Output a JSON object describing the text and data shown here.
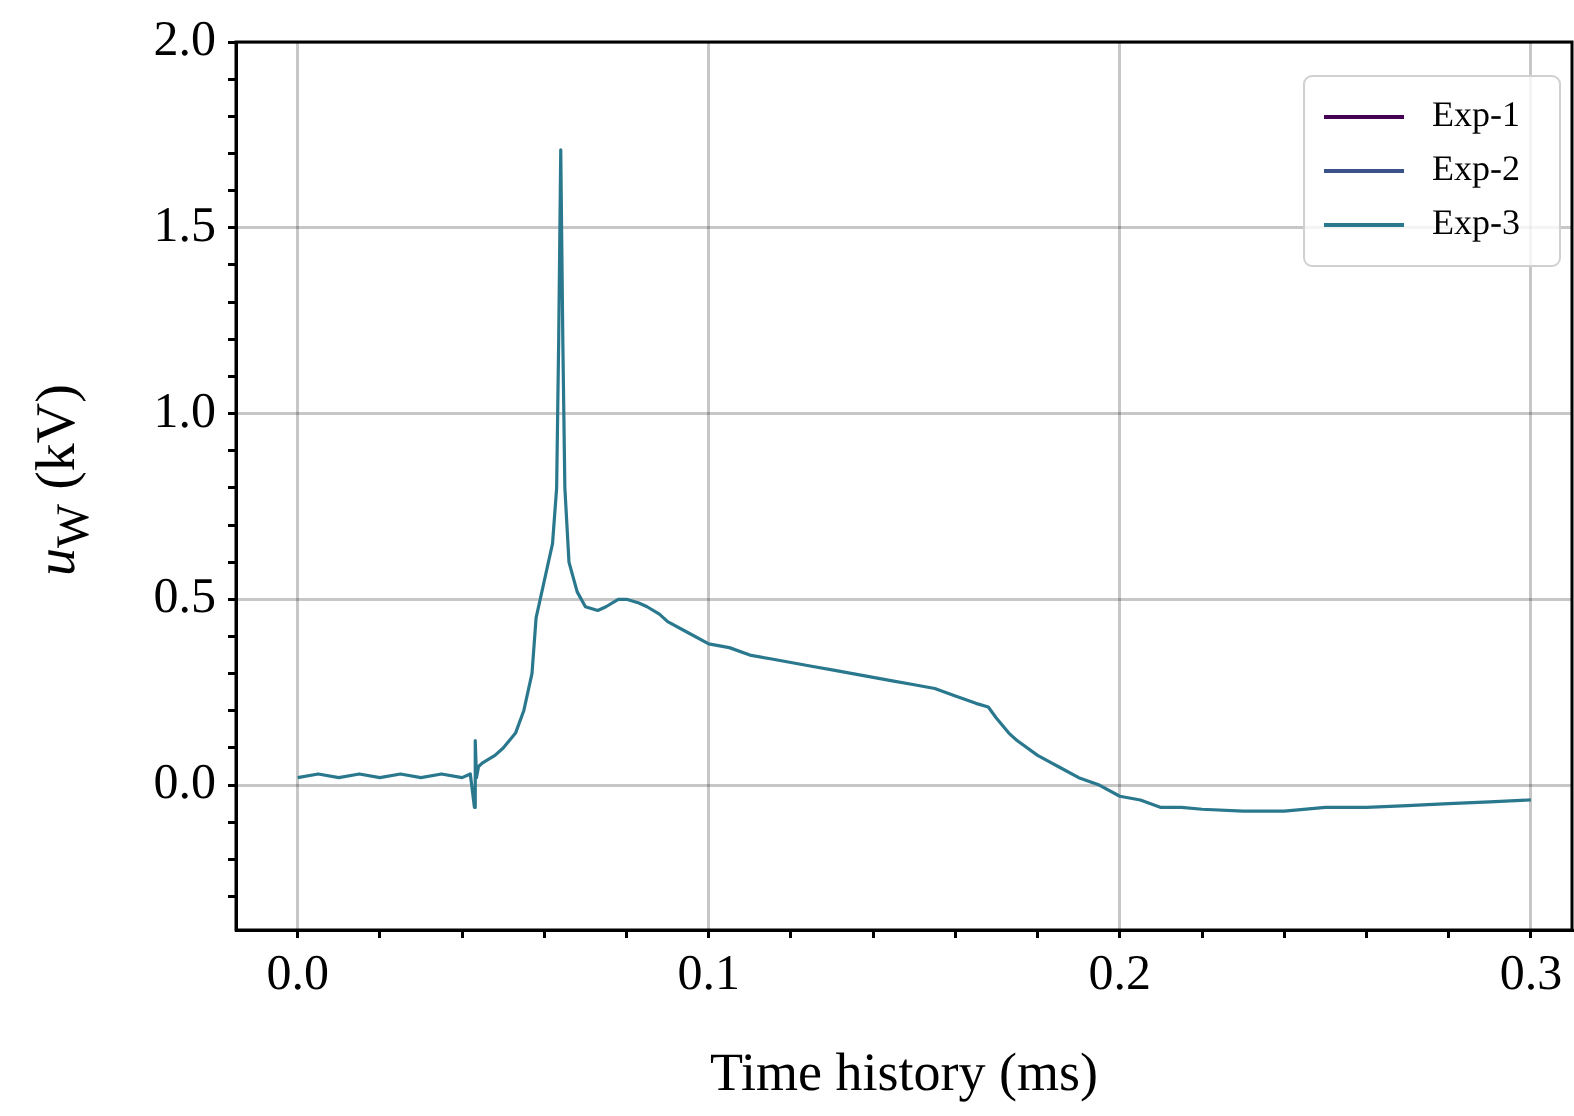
{
  "chart_data": {
    "type": "line",
    "xlabel": "Time history (ms)",
    "ylabel": "u$_{W}$ (kV)",
    "x": [
      0,
      0.005,
      0.01,
      0.015,
      0.02,
      0.025,
      0.03,
      0.035,
      0.04,
      0.042,
      0.043,
      0.0432,
      0.0435,
      0.044,
      0.045,
      0.048,
      0.05,
      0.053,
      0.055,
      0.056,
      0.057,
      0.058,
      0.06,
      0.062,
      0.063,
      0.0635,
      0.064,
      0.0645,
      0.065,
      0.066,
      0.068,
      0.07,
      0.073,
      0.075,
      0.078,
      0.08,
      0.083,
      0.085,
      0.088,
      0.09,
      0.095,
      0.1,
      0.105,
      0.11,
      0.115,
      0.12,
      0.125,
      0.13,
      0.135,
      0.14,
      0.145,
      0.15,
      0.155,
      0.16,
      0.165,
      0.168,
      0.17,
      0.173,
      0.175,
      0.18,
      0.185,
      0.19,
      0.195,
      0.2,
      0.205,
      0.21,
      0.215,
      0.22,
      0.23,
      0.24,
      0.25,
      0.26,
      0.27,
      0.28,
      0.29,
      0.3
    ],
    "series": [
      {
        "name": "Exp-1",
        "color": "#440154",
        "values": [
          null,
          null,
          null,
          null,
          null,
          null,
          null,
          null,
          null,
          null,
          null,
          null,
          null,
          null,
          null,
          null,
          null,
          null,
          null,
          null,
          null,
          null,
          null,
          null,
          null,
          null,
          null,
          null,
          null,
          null,
          null,
          null,
          null,
          null,
          null,
          null,
          null,
          null,
          null,
          null,
          null,
          null,
          null,
          null,
          null,
          null,
          null,
          null,
          null,
          null,
          null,
          null,
          null,
          null,
          null,
          null,
          null,
          null,
          null,
          null,
          null,
          null,
          null,
          null,
          null,
          null,
          null,
          null,
          null,
          null,
          null,
          null,
          null,
          null,
          null,
          null
        ]
      },
      {
        "name": "Exp-2",
        "color": "#3b528b",
        "values": [
          null,
          null,
          null,
          null,
          null,
          null,
          null,
          null,
          null,
          null,
          null,
          null,
          null,
          null,
          null,
          null,
          null,
          null,
          null,
          null,
          null,
          null,
          null,
          null,
          null,
          null,
          null,
          null,
          null,
          null,
          null,
          null,
          null,
          null,
          null,
          null,
          null,
          null,
          null,
          null,
          null,
          null,
          null,
          null,
          null,
          null,
          null,
          null,
          null,
          null,
          null,
          null,
          null,
          null,
          null,
          null,
          null,
          null,
          null,
          null,
          null,
          null,
          null,
          null,
          null,
          null,
          null,
          null,
          null,
          null,
          null,
          null,
          null,
          null,
          null,
          null
        ]
      },
      {
        "name": "Exp-3",
        "color": "#2a788e",
        "values": [
          0.02,
          0.03,
          0.02,
          0.03,
          0.02,
          0.03,
          0.02,
          0.03,
          0.02,
          0.03,
          -0.06,
          0.12,
          0.02,
          0.05,
          0.06,
          0.08,
          0.1,
          0.14,
          0.2,
          0.25,
          0.3,
          0.45,
          0.55,
          0.65,
          0.8,
          1.2,
          1.71,
          1.2,
          0.8,
          0.6,
          0.52,
          0.48,
          0.47,
          0.48,
          0.5,
          0.5,
          0.49,
          0.48,
          0.46,
          0.44,
          0.41,
          0.38,
          0.37,
          0.35,
          0.34,
          0.33,
          0.32,
          0.31,
          0.3,
          0.29,
          0.28,
          0.27,
          0.26,
          0.24,
          0.22,
          0.21,
          0.18,
          0.14,
          0.12,
          0.08,
          0.05,
          0.02,
          0.0,
          -0.03,
          -0.04,
          -0.06,
          -0.06,
          -0.065,
          -0.07,
          -0.07,
          -0.06,
          -0.06,
          -0.055,
          -0.05,
          -0.045,
          -0.04
        ]
      }
    ],
    "xlim": [
      -0.015,
      0.31
    ],
    "ylim": [
      -0.39,
      2.0
    ],
    "xticks": [
      {
        "value": 0,
        "label": "0.0"
      },
      {
        "value": 0.02,
        "label": null
      },
      {
        "value": 0.04,
        "label": null
      },
      {
        "value": 0.06,
        "label": null
      },
      {
        "value": 0.08,
        "label": null
      },
      {
        "value": 0.1,
        "label": "0.1"
      },
      {
        "value": 0.12,
        "label": null
      },
      {
        "value": 0.14,
        "label": null
      },
      {
        "value": 0.16,
        "label": null
      },
      {
        "value": 0.18,
        "label": null
      },
      {
        "value": 0.2,
        "label": "0.2"
      },
      {
        "value": 0.22,
        "label": null
      },
      {
        "value": 0.24,
        "label": null
      },
      {
        "value": 0.26,
        "label": null
      },
      {
        "value": 0.28,
        "label": null
      },
      {
        "value": 0.3,
        "label": "0.3"
      }
    ],
    "yticks": [
      {
        "value": -0.3,
        "label": null
      },
      {
        "value": -0.2,
        "label": null
      },
      {
        "value": -0.1,
        "label": null
      },
      {
        "value": 0,
        "label": "0.0"
      },
      {
        "value": 0.1,
        "label": null
      },
      {
        "value": 0.2,
        "label": null
      },
      {
        "value": 0.3,
        "label": null
      },
      {
        "value": 0.4,
        "label": null
      },
      {
        "value": 0.5,
        "label": "0.5"
      },
      {
        "value": 0.6,
        "label": null
      },
      {
        "value": 0.7,
        "label": null
      },
      {
        "value": 0.8,
        "label": null
      },
      {
        "value": 0.9,
        "label": null
      },
      {
        "value": 1,
        "label": "1.0"
      },
      {
        "value": 1.1,
        "label": null
      },
      {
        "value": 1.2,
        "label": null
      },
      {
        "value": 1.3,
        "label": null
      },
      {
        "value": 1.4,
        "label": null
      },
      {
        "value": 1.5,
        "label": "1.5"
      },
      {
        "value": 1.6,
        "label": null
      },
      {
        "value": 1.7,
        "label": null
      },
      {
        "value": 1.8,
        "label": null
      },
      {
        "value": 1.9,
        "label": null
      },
      {
        "value": 2,
        "label": "2.0"
      }
    ],
    "grid": true,
    "legend": "top right",
    "marker": "none",
    "line_style": "solid"
  }
}
